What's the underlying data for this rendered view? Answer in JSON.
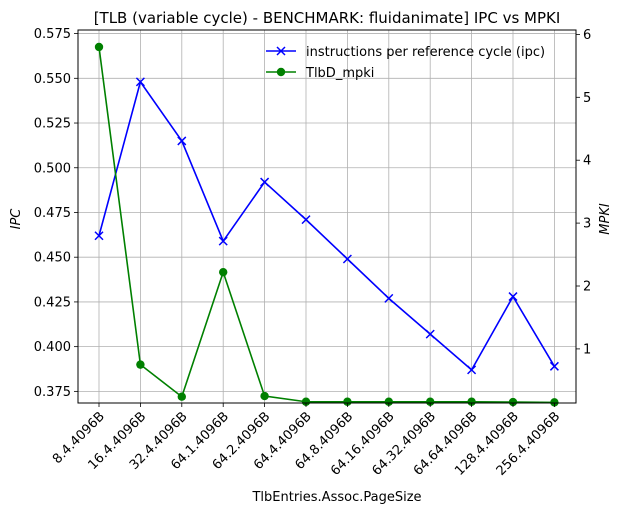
{
  "chart_data": {
    "type": "line",
    "title": "[TLB (variable cycle) - BENCHMARK: fluidanimate]  IPC vs MPKI",
    "xlabel": "TlbEntries.Assoc.PageSize",
    "ylabel_left": "IPC",
    "ylabel_right": "MPKI",
    "categories": [
      "8.4.4096B",
      "16.4.4096B",
      "32.4.4096B",
      "64.1.4096B",
      "64.2.4096B",
      "64.4.4096B",
      "64.8.4096B",
      "64.16.4096B",
      "64.32.4096B",
      "64.64.4096B",
      "128.4.4096B",
      "256.4.4096B"
    ],
    "ylim_left": [
      0.3685,
      0.577
    ],
    "ylim_right": [
      0.14,
      6.07
    ],
    "yticks_left": [
      "0.375",
      "0.400",
      "0.425",
      "0.450",
      "0.475",
      "0.500",
      "0.525",
      "0.550",
      "0.575"
    ],
    "yticks_right": [
      "1",
      "2",
      "3",
      "4",
      "5",
      "6"
    ],
    "grid": true,
    "legend_position": "top-right",
    "series": [
      {
        "name": "instructions per reference cycle (ipc)",
        "axis": "left",
        "color": "#0000ff",
        "marker": "x",
        "values": [
          0.462,
          0.548,
          0.515,
          0.459,
          0.492,
          0.471,
          0.449,
          0.427,
          0.407,
          0.387,
          0.428,
          0.389
        ]
      },
      {
        "name": "TlbD_mpki",
        "axis": "right",
        "color": "#008000",
        "marker": "o",
        "values": [
          5.8,
          0.75,
          0.24,
          2.22,
          0.25,
          0.16,
          0.16,
          0.16,
          0.16,
          0.16,
          0.155,
          0.15
        ]
      }
    ]
  }
}
